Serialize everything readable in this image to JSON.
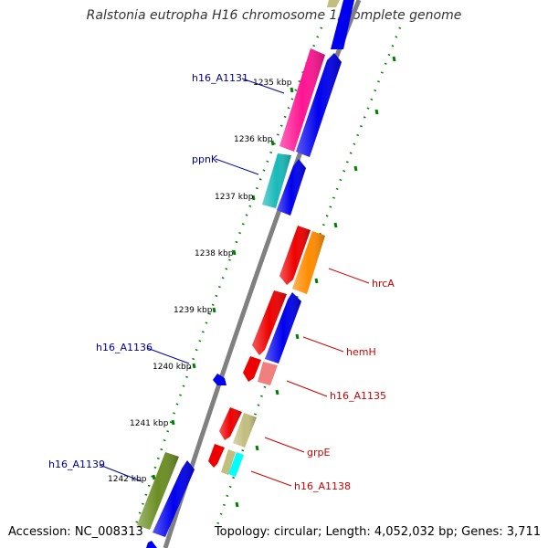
{
  "title": "Ralstonia eutropha H16 chromosome 1, complete genome",
  "footer": {
    "accession": "Accession: NC_008313",
    "summary": "Topology: circular; Length: 4,052,032 bp; Genes: 3,711"
  },
  "colors": {
    "backbone": "#808080",
    "ticks": "#008000",
    "label_forward": "#000099",
    "label_reverse": "#cc0000"
  },
  "scale_labels": [
    {
      "id": "1235",
      "text": "1235 kbp"
    },
    {
      "id": "1236",
      "text": "1236 kbp"
    },
    {
      "id": "1237",
      "text": "1237 kbp"
    },
    {
      "id": "1238",
      "text": "1238 kbp"
    },
    {
      "id": "1239",
      "text": "1239 kbp"
    },
    {
      "id": "1240",
      "text": "1240 kbp"
    },
    {
      "id": "1241",
      "text": "1241 kbp"
    },
    {
      "id": "1242",
      "text": "1242 kbp"
    }
  ],
  "gene_labels": [
    {
      "id": "h16_A1131",
      "text": "h16_A1131",
      "strand": "forward"
    },
    {
      "id": "ppnK",
      "text": "ppnK",
      "strand": "forward"
    },
    {
      "id": "h16_A1136",
      "text": "h16_A1136",
      "strand": "forward"
    },
    {
      "id": "h16_A1139",
      "text": "h16_A1139",
      "strand": "forward"
    },
    {
      "id": "hrcA",
      "text": "hrcA",
      "strand": "reverse"
    },
    {
      "id": "hemH",
      "text": "hemH",
      "strand": "reverse"
    },
    {
      "id": "h16_A1135",
      "text": "h16_A1135",
      "strand": "reverse"
    },
    {
      "id": "grpE",
      "text": "grpE",
      "strand": "reverse"
    },
    {
      "id": "h16_A1138",
      "text": "h16_A1138",
      "strand": "reverse"
    }
  ],
  "features": [
    {
      "id": "top-khaki",
      "color": "#c2be7e"
    },
    {
      "id": "top-blue",
      "color": "#0000ee"
    },
    {
      "id": "a1131",
      "color": "#ff1493"
    },
    {
      "id": "blue-1131",
      "color": "#0000ee"
    },
    {
      "id": "ppnk",
      "color": "#19b9b9"
    },
    {
      "id": "blue-ppnk",
      "color": "#0000ee"
    },
    {
      "id": "red-hrca",
      "color": "#ee0000"
    },
    {
      "id": "hrca",
      "color": "#ff8c00"
    },
    {
      "id": "red-hemh",
      "color": "#ee0000"
    },
    {
      "id": "hemh",
      "color": "#0000ee"
    },
    {
      "id": "red-small",
      "color": "#ee0000"
    },
    {
      "id": "a1135",
      "color": "#f08080"
    },
    {
      "id": "a1136",
      "color": "#0000ee"
    },
    {
      "id": "red-grpe",
      "color": "#ee0000"
    },
    {
      "id": "grpe",
      "color": "#c2be7e"
    },
    {
      "id": "red-a1138",
      "color": "#ee0000"
    },
    {
      "id": "khaki-a1138",
      "color": "#c2be7e"
    },
    {
      "id": "a1138",
      "color": "#00ffff"
    },
    {
      "id": "a1139",
      "color": "#6b8e23"
    },
    {
      "id": "blue-1139",
      "color": "#0000ee"
    },
    {
      "id": "bottom-blue",
      "color": "#0000ee"
    }
  ]
}
